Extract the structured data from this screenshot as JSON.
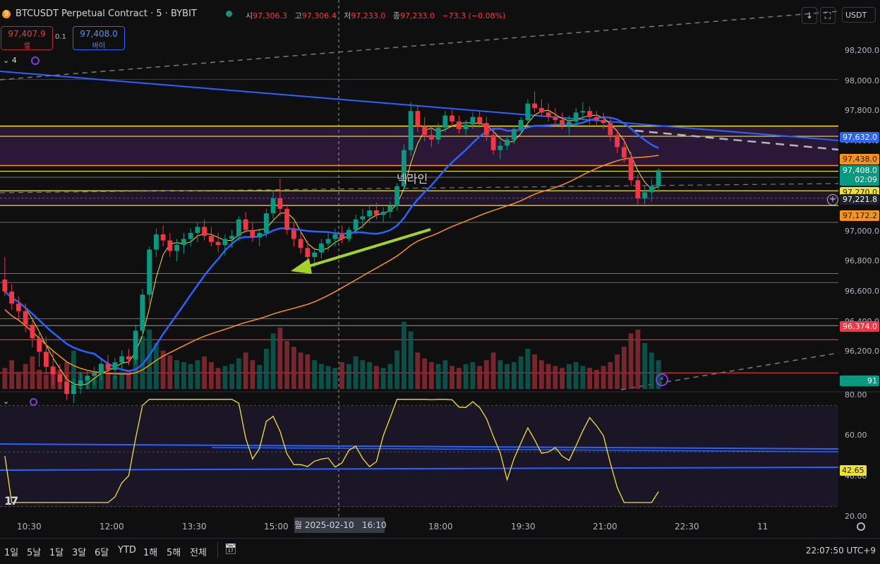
{
  "header": {
    "symbol_title": "BTCUSDT Perpetual Contract · 5 · BYBIT",
    "ohlc": [
      {
        "key": "시",
        "value": "97,306.3"
      },
      {
        "key": "고",
        "value": "97,306.4"
      },
      {
        "key": "저",
        "value": "97,233.0"
      },
      {
        "key": "종",
        "value": "97,233.0"
      },
      {
        "key": "",
        "value": "−73.3 (−0.08%)"
      }
    ],
    "sell_price": "97,407.9",
    "sell_label": "셀",
    "spread": "0.1",
    "buy_price": "97,408.0",
    "buy_label": "바이",
    "indicator_count": "4",
    "currency": "USDT",
    "currency_chevron": "⌄"
  },
  "chart_data": {
    "type": "candlestick",
    "price_axis_ticks": [
      "98,200.0",
      "98,000.0",
      "97,800.0",
      "97,600.0",
      "97,400.0",
      "97,200.0",
      "97,000.0",
      "96,800.0",
      "96,600.0",
      "96,400.0",
      "96,200.0",
      "96,000.0"
    ],
    "price_tags": [
      {
        "value": "97,632.0",
        "color": "#2962ff"
      },
      {
        "value": "97,438.0",
        "color": "#f7931a"
      },
      {
        "value": "97,408.0",
        "sub": "02:09",
        "color": "#089981"
      },
      {
        "value": "97,270.0",
        "color": "#f0e130"
      },
      {
        "value": "97,221.8",
        "color": "#1e222d"
      },
      {
        "value": "97,172.2",
        "color": "#f7931a"
      },
      {
        "value": "96,374.0",
        "color": "#f23645"
      },
      {
        "value": "91",
        "color": "#089981"
      }
    ],
    "annotation": "넥라인",
    "time_labels": [
      "10:30",
      "12:00",
      "13:30",
      "15:00",
      "18:00",
      "19:30",
      "21:00",
      "22:30",
      "11"
    ],
    "crosshair_time": "월 2025-02-10   16:10",
    "rsi_ticks": [
      "80.00",
      "60.00",
      "40.00",
      "20.00"
    ],
    "rsi_value": "42.65",
    "candles": [
      [
        96680,
        96830,
        96570,
        96600
      ],
      [
        96600,
        96650,
        96480,
        96520
      ],
      [
        96520,
        96570,
        96420,
        96470
      ],
      [
        96470,
        96520,
        96330,
        96380
      ],
      [
        96380,
        96430,
        96230,
        96290
      ],
      [
        96290,
        96340,
        96100,
        96200
      ],
      [
        96200,
        96300,
        96050,
        96100
      ],
      [
        96100,
        96200,
        95980,
        96050
      ],
      [
        96050,
        96120,
        95950,
        96000
      ],
      [
        96000,
        96050,
        95880,
        95920
      ],
      [
        95920,
        96020,
        95860,
        95980
      ],
      [
        95980,
        96060,
        95920,
        96010
      ],
      [
        96010,
        96080,
        95950,
        96040
      ],
      [
        96040,
        96100,
        95980,
        96060
      ],
      [
        96060,
        96150,
        96010,
        96120
      ],
      [
        96120,
        96180,
        96050,
        96080
      ],
      [
        96080,
        96160,
        96020,
        96130
      ],
      [
        96130,
        96210,
        96090,
        96170
      ],
      [
        96170,
        96220,
        96110,
        96150
      ],
      [
        96150,
        96380,
        96120,
        96340
      ],
      [
        96340,
        96620,
        96300,
        96580
      ],
      [
        96580,
        96900,
        96520,
        96880
      ],
      [
        96880,
        97020,
        96830,
        96980
      ],
      [
        96980,
        97040,
        96900,
        96940
      ],
      [
        96940,
        96990,
        96830,
        96870
      ],
      [
        96870,
        96950,
        96800,
        96910
      ],
      [
        96910,
        96990,
        96850,
        96950
      ],
      [
        96950,
        97020,
        96900,
        96990
      ],
      [
        96990,
        97060,
        96930,
        97030
      ],
      [
        97030,
        97080,
        96940,
        96970
      ],
      [
        96970,
        97030,
        96900,
        96930
      ],
      [
        96930,
        96990,
        96860,
        96910
      ],
      [
        96910,
        96980,
        96840,
        96950
      ],
      [
        96950,
        97010,
        96890,
        96970
      ],
      [
        96970,
        97100,
        96940,
        97080
      ],
      [
        97080,
        97130,
        96990,
        97010
      ],
      [
        97010,
        97060,
        96930,
        96960
      ],
      [
        96960,
        97020,
        96900,
        96990
      ],
      [
        96990,
        97150,
        96960,
        97120
      ],
      [
        97120,
        97270,
        97080,
        97220
      ],
      [
        97220,
        97350,
        97100,
        97150
      ],
      [
        97150,
        97180,
        96980,
        97010
      ],
      [
        97010,
        97060,
        96900,
        96950
      ],
      [
        96950,
        97000,
        96850,
        96890
      ],
      [
        96890,
        96940,
        96780,
        96830
      ],
      [
        96830,
        96890,
        96760,
        96860
      ],
      [
        96860,
        96950,
        96820,
        96920
      ],
      [
        96920,
        96990,
        96870,
        96950
      ],
      [
        96950,
        97020,
        96900,
        96980
      ],
      [
        96980,
        97040,
        96920,
        96950
      ],
      [
        96950,
        97030,
        96930,
        97010
      ],
      [
        97010,
        97110,
        96980,
        97080
      ],
      [
        97080,
        97150,
        97020,
        97100
      ],
      [
        97100,
        97180,
        97060,
        97140
      ],
      [
        97140,
        97190,
        97080,
        97110
      ],
      [
        97110,
        97160,
        97060,
        97130
      ],
      [
        97130,
        97200,
        97090,
        97170
      ],
      [
        97170,
        97320,
        97140,
        97300
      ],
      [
        97300,
        97580,
        97280,
        97540
      ],
      [
        97540,
        97860,
        97500,
        97800
      ],
      [
        97800,
        97840,
        97660,
        97700
      ],
      [
        97700,
        97760,
        97600,
        97640
      ],
      [
        97640,
        97700,
        97560,
        97610
      ],
      [
        97610,
        97720,
        97580,
        97690
      ],
      [
        97690,
        97800,
        97660,
        97770
      ],
      [
        97770,
        97810,
        97700,
        97730
      ],
      [
        97730,
        97770,
        97650,
        97680
      ],
      [
        97680,
        97740,
        97640,
        97710
      ],
      [
        97710,
        97790,
        97680,
        97760
      ],
      [
        97760,
        97800,
        97690,
        97720
      ],
      [
        97720,
        97760,
        97600,
        97640
      ],
      [
        97640,
        97690,
        97510,
        97540
      ],
      [
        97540,
        97600,
        97480,
        97570
      ],
      [
        97570,
        97640,
        97540,
        97610
      ],
      [
        97610,
        97700,
        97580,
        97680
      ],
      [
        97680,
        97760,
        97650,
        97740
      ],
      [
        97740,
        97880,
        97710,
        97850
      ],
      [
        97850,
        97930,
        97790,
        97820
      ],
      [
        97820,
        97880,
        97760,
        97790
      ],
      [
        97790,
        97850,
        97730,
        97760
      ],
      [
        97760,
        97820,
        97700,
        97740
      ],
      [
        97740,
        97790,
        97680,
        97710
      ],
      [
        97710,
        97770,
        97640,
        97730
      ],
      [
        97730,
        97820,
        97700,
        97790
      ],
      [
        97790,
        97860,
        97740,
        97800
      ],
      [
        97800,
        97830,
        97710,
        97760
      ],
      [
        97760,
        97800,
        97700,
        97740
      ],
      [
        97740,
        97790,
        97680,
        97720
      ],
      [
        97720,
        97760,
        97600,
        97640
      ],
      [
        97640,
        97680,
        97520,
        97560
      ],
      [
        97560,
        97620,
        97460,
        97490
      ],
      [
        97490,
        97530,
        97300,
        97340
      ],
      [
        97340,
        97380,
        97180,
        97220
      ],
      [
        97220,
        97300,
        97180,
        97260
      ],
      [
        97260,
        97350,
        97200,
        97300
      ],
      [
        97300,
        97420,
        97260,
        97408
      ]
    ],
    "volume": [
      22,
      30,
      18,
      26,
      34,
      20,
      15,
      24,
      20,
      28,
      40,
      18,
      14,
      12,
      22,
      16,
      14,
      18,
      20,
      38,
      55,
      62,
      48,
      40,
      35,
      30,
      28,
      26,
      30,
      34,
      28,
      22,
      24,
      26,
      32,
      38,
      30,
      25,
      42,
      58,
      64,
      50,
      44,
      38,
      36,
      30,
      26,
      24,
      22,
      28,
      26,
      34,
      30,
      28,
      24,
      22,
      26,
      40,
      70,
      60,
      38,
      32,
      28,
      26,
      30,
      24,
      22,
      26,
      28,
      24,
      30,
      38,
      30,
      26,
      28,
      34,
      42,
      36,
      30,
      26,
      24,
      22,
      26,
      28,
      24,
      22,
      20,
      24,
      28,
      36,
      44,
      58,
      62,
      48,
      38,
      30
    ]
  },
  "bottom_bar": {
    "timeframes": [
      "1일",
      "5날",
      "1달",
      "3달",
      "6달",
      "YTD",
      "1해",
      "5해",
      "전체"
    ],
    "clock": "22:07:50 UTC+9"
  },
  "colors": {
    "up": "#089981",
    "down": "#f23645",
    "ma_blue": "#2962ff",
    "ma_orange": "#f7931a",
    "rsi": "#f0e130",
    "zone": "#2e1a3a"
  }
}
